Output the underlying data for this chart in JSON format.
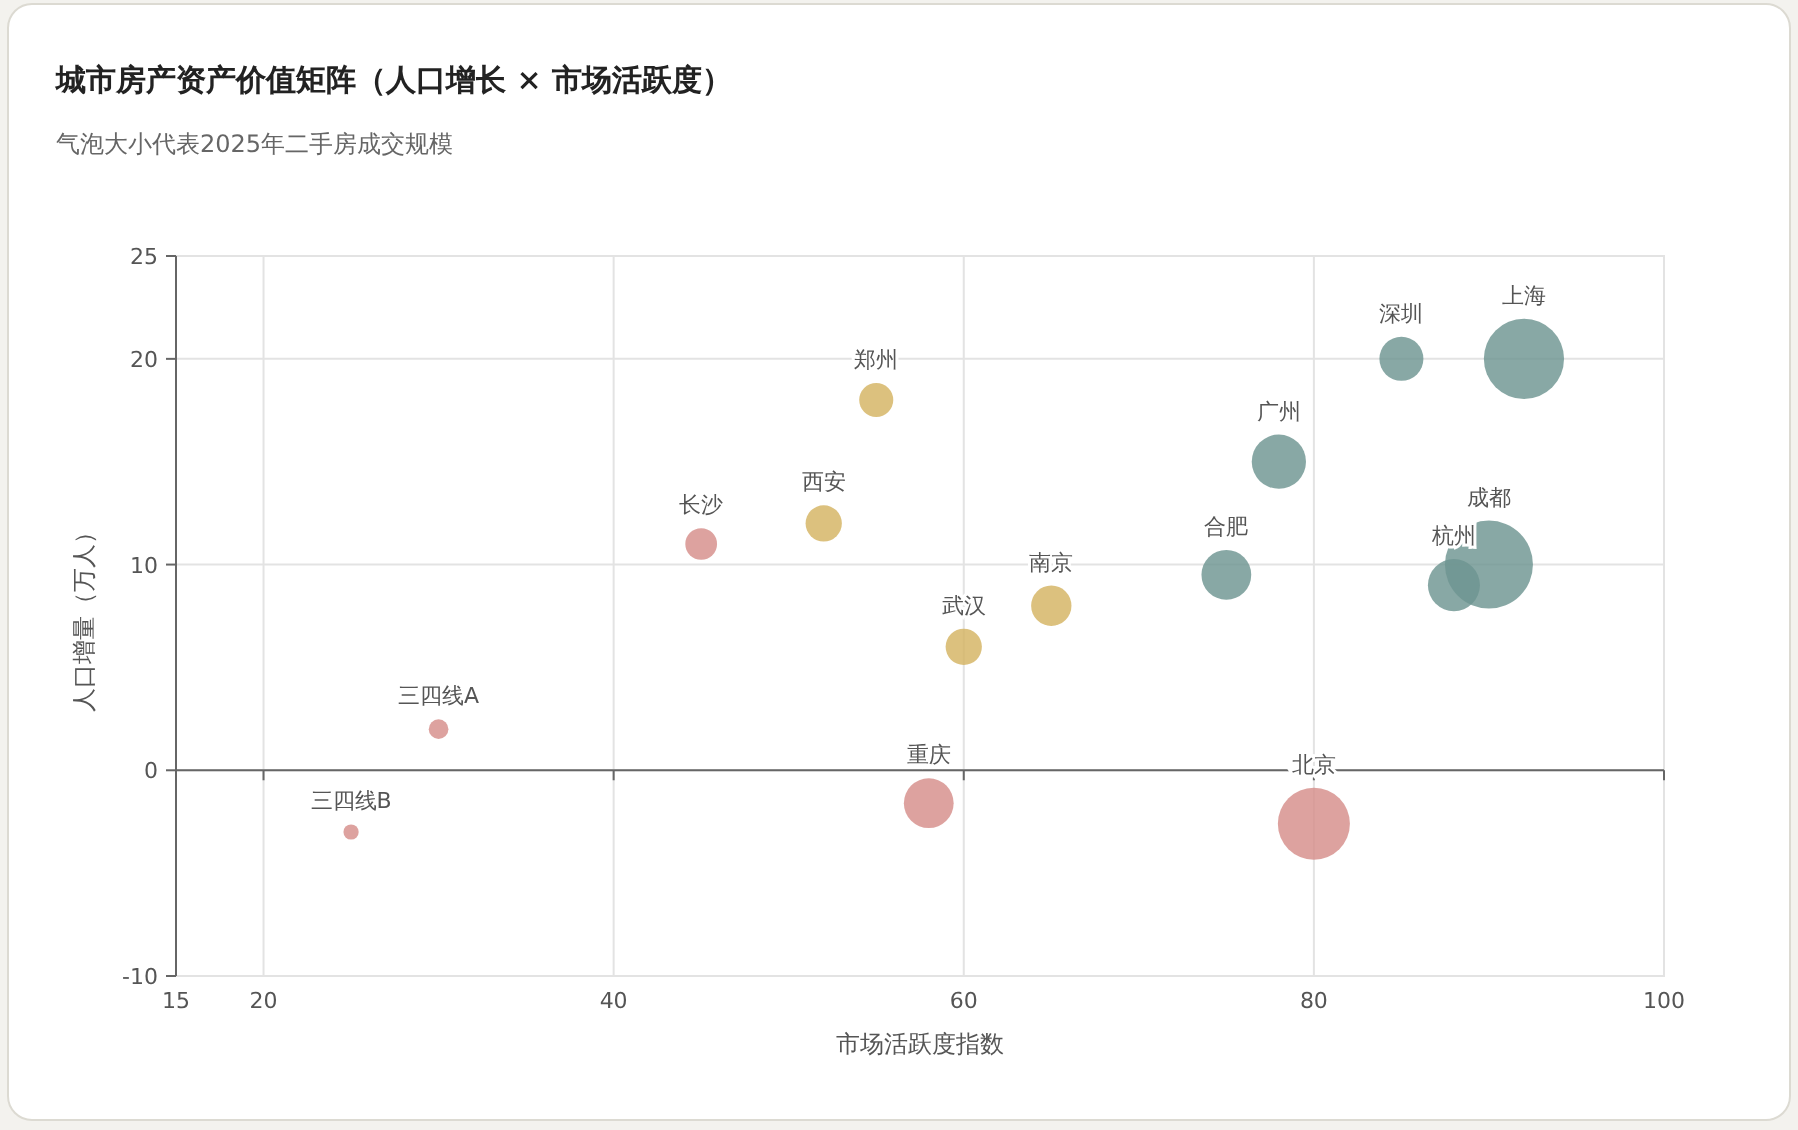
{
  "chart_data": {
    "type": "bubble",
    "title": "城市房产资产价值矩阵（人口增长 × 市场活跃度）",
    "subtitle": "气泡大小代表2025年二手房成交规模",
    "xlabel": "市场活跃度指数",
    "ylabel": "人口增量（万人）",
    "xlim": [
      15,
      100
    ],
    "xticks": [
      15,
      20,
      40,
      60,
      80,
      100
    ],
    "ylim": [
      -10,
      25
    ],
    "yticks": [
      -10,
      0,
      10,
      20,
      25
    ],
    "grid": true,
    "series": [
      {
        "color": "#d58e8a",
        "x": [
          25,
          30,
          45,
          58,
          80
        ],
        "values": [
          -3,
          2,
          11,
          -1.6,
          -2.6
        ],
        "sizes": [
          0.03,
          0.05,
          0.13,
          0.32,
          0.67
        ]
      },
      {
        "color": "#d4b362",
        "x": [
          55,
          52,
          60,
          65
        ],
        "values": [
          18,
          12,
          6,
          8
        ],
        "sizes": [
          0.15,
          0.17,
          0.17,
          0.21
        ]
      },
      {
        "color": "#6e9591",
        "x": [
          75,
          78,
          85,
          92,
          88,
          90
        ],
        "values": [
          9.5,
          15,
          20,
          20,
          9,
          10
        ],
        "sizes": [
          0.32,
          0.38,
          0.25,
          0.83,
          0.35,
          1
        ]
      }
    ],
    "annotations": [
      {
        "text": "三四线B",
        "x": 25,
        "y": -3
      },
      {
        "text": "三四线A",
        "x": 30,
        "y": 2
      },
      {
        "text": "长沙",
        "x": 45,
        "y": 11
      },
      {
        "text": "重庆",
        "x": 58,
        "y": -1.6
      },
      {
        "text": "北京",
        "x": 80,
        "y": -2.6
      },
      {
        "text": "郑州",
        "x": 55,
        "y": 18
      },
      {
        "text": "西安",
        "x": 52,
        "y": 12
      },
      {
        "text": "武汉",
        "x": 60,
        "y": 6
      },
      {
        "text": "南京",
        "x": 65,
        "y": 8
      },
      {
        "text": "合肥",
        "x": 75,
        "y": 9.5
      },
      {
        "text": "广州",
        "x": 78,
        "y": 15
      },
      {
        "text": "深圳",
        "x": 85,
        "y": 20
      },
      {
        "text": "上海",
        "x": 92,
        "y": 20
      },
      {
        "text": "杭州",
        "x": 88,
        "y": 9
      },
      {
        "text": "成都",
        "x": 90,
        "y": 10
      }
    ]
  }
}
